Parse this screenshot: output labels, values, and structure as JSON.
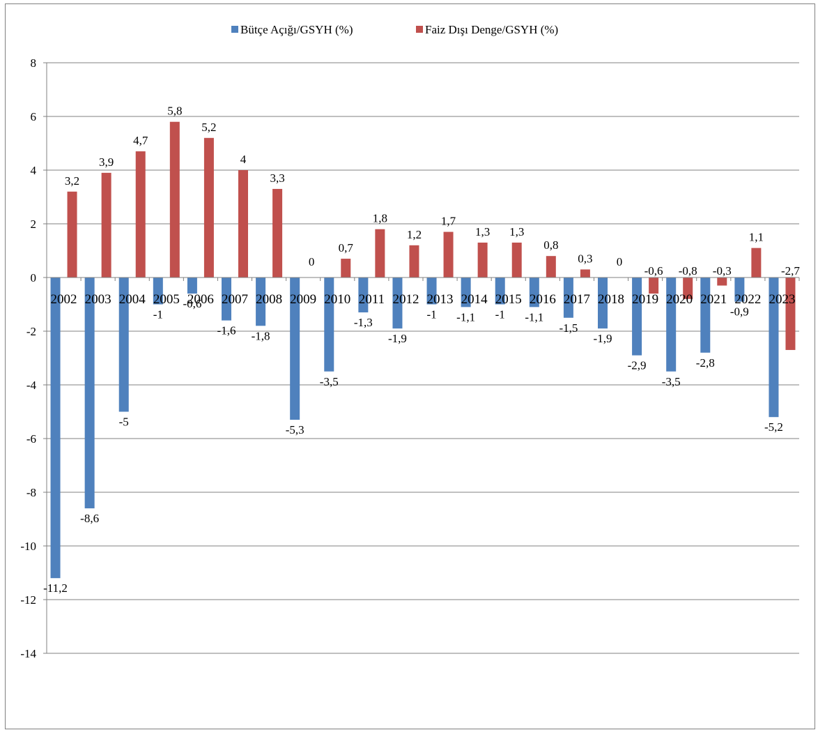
{
  "chart_data": {
    "type": "bar",
    "title": "",
    "xlabel": "",
    "ylabel": "",
    "ylim": [
      -14,
      8
    ],
    "y_ticks": [
      8,
      6,
      4,
      2,
      0,
      -2,
      -4,
      -6,
      -8,
      -10,
      -12,
      -14
    ],
    "grid": "horizontal",
    "legend_position": "top-center",
    "categories": [
      "2002",
      "2003",
      "2004",
      "2005",
      "2006",
      "2007",
      "2008",
      "2009",
      "2010",
      "2011",
      "2012",
      "2013",
      "2014",
      "2015",
      "2016",
      "2017",
      "2018",
      "2019",
      "2020",
      "2021",
      "2022",
      "2023"
    ],
    "series": [
      {
        "name": "Bütçe Açığı/GSYH (%)",
        "color": "#4f81bd",
        "values": [
          -11.2,
          -8.6,
          -5,
          -1,
          -0.6,
          -1.6,
          -1.8,
          -5.3,
          -3.5,
          -1.3,
          -1.9,
          -1,
          -1.1,
          -1,
          -1.1,
          -1.5,
          -1.9,
          -2.9,
          -3.5,
          -2.8,
          -0.9,
          -5.2
        ],
        "labels": [
          "-11,2",
          "-8,6",
          "-5",
          "-1",
          "-0,6",
          "-1,6",
          "-1,8",
          "-5,3",
          "-3,5",
          "-1,3",
          "-1,9",
          "-1",
          "-1,1",
          "-1",
          "-1,1",
          "-1,5",
          "-1,9",
          "-2,9",
          "-3,5",
          "-2,8",
          "-0,9",
          "-5,2"
        ]
      },
      {
        "name": "Faiz Dışı Denge/GSYH (%)",
        "color": "#c0504d",
        "values": [
          3.2,
          3.9,
          4.7,
          5.8,
          5.2,
          4,
          3.3,
          0,
          0.7,
          1.8,
          1.2,
          1.7,
          1.3,
          1.3,
          0.8,
          0.3,
          0,
          -0.6,
          -0.8,
          -0.3,
          1.1,
          -2.7
        ],
        "labels": [
          "3,2",
          "3,9",
          "4,7",
          "5,8",
          "5,2",
          "4",
          "3,3",
          "0",
          "0,7",
          "1,8",
          "1,2",
          "1,7",
          "1,3",
          "1,3",
          "0,8",
          "0,3",
          "0",
          "-0,6",
          "-0,8",
          "-0,3",
          "1,1",
          "-2,7"
        ]
      }
    ]
  }
}
